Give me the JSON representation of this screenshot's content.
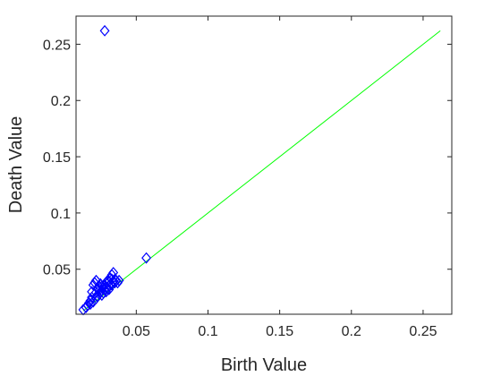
{
  "chart_data": {
    "type": "scatter",
    "title": "",
    "xlabel": "Birth Value",
    "ylabel": "Death Value",
    "xlim": [
      0.008,
      0.27
    ],
    "ylim": [
      0.01,
      0.275
    ],
    "xticks": [
      0.05,
      0.1,
      0.15,
      0.2,
      0.25
    ],
    "yticks": [
      0.05,
      0.1,
      0.15,
      0.2,
      0.25
    ],
    "xtick_labels": [
      "0.05",
      "0.1",
      "0.15",
      "0.2",
      "0.25"
    ],
    "ytick_labels": [
      "0.05",
      "0.1",
      "0.15",
      "0.2",
      "0.25"
    ],
    "grid": false,
    "marker": "diamond-open",
    "colors": {
      "points": "#0000ff",
      "diagonal": "#00ff00",
      "axes": "#262626"
    },
    "diagonal": {
      "from": [
        0.013,
        0.013
      ],
      "to": [
        0.262,
        0.262
      ]
    },
    "series": [
      {
        "points": [
          [
            0.028,
            0.262
          ],
          [
            0.057,
            0.06
          ],
          [
            0.013,
            0.014
          ],
          [
            0.015,
            0.016
          ],
          [
            0.016,
            0.018
          ],
          [
            0.017,
            0.02
          ],
          [
            0.018,
            0.022
          ],
          [
            0.018,
            0.019
          ],
          [
            0.019,
            0.025
          ],
          [
            0.02,
            0.021
          ],
          [
            0.02,
            0.036
          ],
          [
            0.021,
            0.038
          ],
          [
            0.022,
            0.04
          ],
          [
            0.022,
            0.024
          ],
          [
            0.023,
            0.033
          ],
          [
            0.023,
            0.026
          ],
          [
            0.024,
            0.035
          ],
          [
            0.024,
            0.028
          ],
          [
            0.025,
            0.03
          ],
          [
            0.025,
            0.037
          ],
          [
            0.026,
            0.031
          ],
          [
            0.026,
            0.027
          ],
          [
            0.027,
            0.034
          ],
          [
            0.027,
            0.029
          ],
          [
            0.028,
            0.036
          ],
          [
            0.028,
            0.032
          ],
          [
            0.029,
            0.03
          ],
          [
            0.029,
            0.038
          ],
          [
            0.03,
            0.033
          ],
          [
            0.03,
            0.04
          ],
          [
            0.031,
            0.035
          ],
          [
            0.031,
            0.032
          ],
          [
            0.032,
            0.037
          ],
          [
            0.032,
            0.042
          ],
          [
            0.033,
            0.036
          ],
          [
            0.033,
            0.045
          ],
          [
            0.034,
            0.039
          ],
          [
            0.034,
            0.047
          ],
          [
            0.035,
            0.038
          ],
          [
            0.035,
            0.041
          ],
          [
            0.036,
            0.04
          ],
          [
            0.037,
            0.038
          ],
          [
            0.038,
            0.04
          ],
          [
            0.019,
            0.03
          ],
          [
            0.021,
            0.028
          ],
          [
            0.024,
            0.031
          ],
          [
            0.026,
            0.035
          ],
          [
            0.029,
            0.034
          ],
          [
            0.031,
            0.039
          ],
          [
            0.033,
            0.041
          ]
        ]
      }
    ]
  }
}
